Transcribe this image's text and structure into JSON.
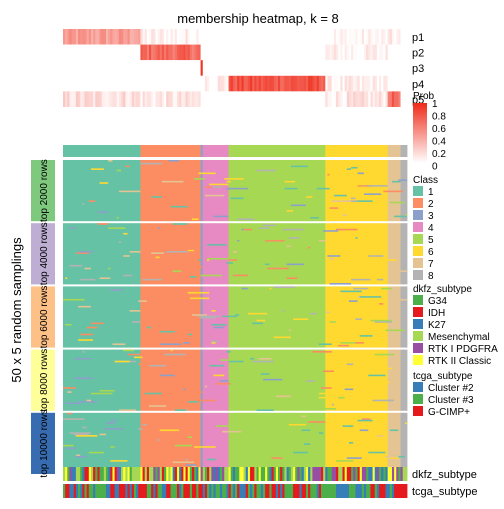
{
  "chart_data": {
    "type": "heatmap",
    "title": "membership heatmap, k = 8",
    "left_title": "50 x 5 random samplings",
    "row_groups": [
      "top 2000 rows",
      "top 4000 rows",
      "top 6000 rows",
      "top 8000 rows",
      "top 10000 rows"
    ],
    "row_group_colors": [
      "#7fc97f",
      "#beaed4",
      "#fdc086",
      "#ffff99",
      "#386cb0"
    ],
    "prob_rows": [
      "p1",
      "p2",
      "p3",
      "p4",
      "p5"
    ],
    "class_annotation_label": "",
    "bottom_annotation_labels": [
      "dkfz_subtype",
      "tcga_subtype"
    ],
    "clusters": [
      {
        "class": 1,
        "n": 36
      },
      {
        "class": 2,
        "n": 28
      },
      {
        "class": 3,
        "n": 1
      },
      {
        "class": 4,
        "n": 12
      },
      {
        "class": 5,
        "n": 45
      },
      {
        "class": 6,
        "n": 29
      },
      {
        "class": 7,
        "n": 6
      },
      {
        "class": 8,
        "n": 3
      }
    ],
    "prob_profiles": {
      "p1": [
        0.45,
        0.05,
        0.0,
        0.0,
        0.0,
        0.02,
        0.05,
        0.0
      ],
      "p2": [
        0.0,
        0.7,
        0.0,
        0.0,
        0.0,
        0.05,
        0.0,
        0.0
      ],
      "p3": [
        0.0,
        0.0,
        1.0,
        0.0,
        0.0,
        0.0,
        0.0,
        0.0
      ],
      "p4": [
        0.0,
        0.0,
        0.0,
        0.1,
        0.8,
        0.05,
        0.0,
        0.0
      ],
      "p5": [
        0.15,
        0.1,
        0.0,
        0.0,
        0.0,
        0.1,
        0.7,
        0.0
      ]
    },
    "legends": {
      "prob": {
        "title": "Prob",
        "ticks": [
          "1",
          "0.8",
          "0.6",
          "0.4",
          "0.2",
          "0"
        ],
        "low_color": "#ffffff",
        "high_color": "#ef2a18"
      },
      "class": {
        "title": "Class",
        "items": [
          {
            "label": "1",
            "color": "#66c2a5"
          },
          {
            "label": "2",
            "color": "#fc8d62"
          },
          {
            "label": "3",
            "color": "#8da0cb"
          },
          {
            "label": "4",
            "color": "#e78ac3"
          },
          {
            "label": "5",
            "color": "#a6d854"
          },
          {
            "label": "6",
            "color": "#ffd92f"
          },
          {
            "label": "7",
            "color": "#e5c494"
          },
          {
            "label": "8",
            "color": "#b3b3b3"
          }
        ]
      },
      "dkfz_subtype": {
        "title": "dkfz_subtype",
        "items": [
          {
            "label": "G34",
            "color": "#4daf4a"
          },
          {
            "label": "IDH",
            "color": "#e41a1c"
          },
          {
            "label": "K27",
            "color": "#377eb8"
          },
          {
            "label": "Mesenchymal",
            "color": "#a6d854"
          },
          {
            "label": "RTK I PDGFRA",
            "color": "#984ea3"
          },
          {
            "label": "RTK II Classic",
            "color": "#ffff33"
          }
        ]
      },
      "tcga_subtype": {
        "title": "tcga_subtype",
        "items": [
          {
            "label": "Cluster #2",
            "color": "#377eb8"
          },
          {
            "label": "Cluster #3",
            "color": "#4daf4a"
          },
          {
            "label": "G-CIMP+",
            "color": "#e41a1c"
          }
        ]
      }
    }
  }
}
